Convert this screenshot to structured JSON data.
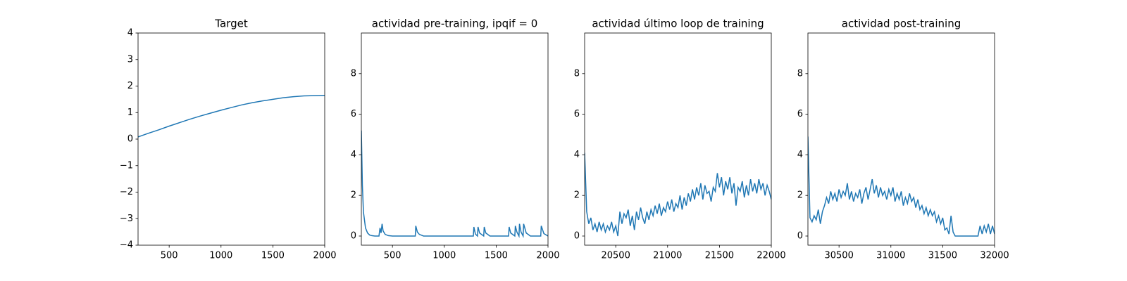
{
  "chart_data": [
    {
      "type": "line",
      "title": "Target",
      "color": "#1f77b4",
      "x": [
        200,
        300,
        400,
        500,
        600,
        700,
        800,
        900,
        1000,
        1100,
        1200,
        1300,
        1400,
        1500,
        1600,
        1700,
        1800,
        1900,
        2000
      ],
      "values": [
        0.08,
        0.22,
        0.35,
        0.49,
        0.62,
        0.75,
        0.87,
        0.98,
        1.09,
        1.19,
        1.29,
        1.37,
        1.44,
        1.5,
        1.56,
        1.6,
        1.63,
        1.64,
        1.65
      ],
      "xlim": [
        200,
        2000
      ],
      "ylim": [
        -4,
        4
      ],
      "xticks": [
        500,
        1000,
        1500,
        2000
      ],
      "yticks": [
        {
          "value": -4,
          "label": "−4"
        },
        {
          "value": -3,
          "label": "−3"
        },
        {
          "value": -2,
          "label": "−2"
        },
        {
          "value": -1,
          "label": "−1"
        },
        0,
        1,
        2,
        3,
        4
      ]
    },
    {
      "type": "line",
      "title": "actividad pre-training, ipqif = 0",
      "color": "#1f77b4",
      "x": [
        200,
        210,
        220,
        240,
        260,
        280,
        300,
        330,
        370,
        380,
        390,
        400,
        410,
        430,
        460,
        500,
        720,
        725,
        740,
        760,
        800,
        1280,
        1285,
        1300,
        1320,
        1325,
        1340,
        1380,
        1385,
        1400,
        1440,
        1620,
        1625,
        1640,
        1680,
        1685,
        1700,
        1720,
        1725,
        1740,
        1760,
        1765,
        1790,
        1830,
        1930,
        1935,
        1960,
        2000
      ],
      "values": [
        5.2,
        2.5,
        1.2,
        0.4,
        0.15,
        0.05,
        0.02,
        0.0,
        0.0,
        0.4,
        0.15,
        0.6,
        0.25,
        0.08,
        0.02,
        0.0,
        0.0,
        0.5,
        0.2,
        0.08,
        0.0,
        0.0,
        0.45,
        0.1,
        0.0,
        0.45,
        0.15,
        0.0,
        0.45,
        0.15,
        0.0,
        0.0,
        0.45,
        0.15,
        0.0,
        0.5,
        0.2,
        0.0,
        0.6,
        0.2,
        0.0,
        0.6,
        0.15,
        0.0,
        0.0,
        0.5,
        0.12,
        0.0
      ],
      "xlim": [
        200,
        2000
      ],
      "ylim": [
        -0.45,
        10
      ],
      "xticks": [
        500,
        1000,
        1500,
        2000
      ],
      "yticks": [
        0,
        2,
        4,
        6,
        8
      ]
    },
    {
      "type": "line",
      "title": "actividad último loop de training",
      "color": "#1f77b4",
      "x": [
        20200,
        20220,
        20240,
        20260,
        20280,
        20300,
        20320,
        20340,
        20360,
        20380,
        20400,
        20420,
        20440,
        20460,
        20480,
        20500,
        20520,
        20540,
        20560,
        20580,
        20600,
        20620,
        20640,
        20660,
        20680,
        20700,
        20720,
        20740,
        20760,
        20780,
        20800,
        20820,
        20840,
        20860,
        20880,
        20900,
        20920,
        20940,
        20960,
        20980,
        21000,
        21020,
        21040,
        21060,
        21080,
        21100,
        21120,
        21140,
        21160,
        21180,
        21200,
        21220,
        21240,
        21260,
        21280,
        21300,
        21320,
        21340,
        21360,
        21380,
        21400,
        21420,
        21440,
        21460,
        21480,
        21500,
        21520,
        21540,
        21560,
        21580,
        21600,
        21620,
        21640,
        21660,
        21680,
        21700,
        21720,
        21740,
        21760,
        21780,
        21800,
        21820,
        21840,
        21860,
        21880,
        21900,
        21920,
        21940,
        21960,
        21980,
        22000
      ],
      "values": [
        4.1,
        1.2,
        0.6,
        0.9,
        0.3,
        0.6,
        0.2,
        0.7,
        0.3,
        0.6,
        0.2,
        0.5,
        0.3,
        0.7,
        0.2,
        0.5,
        0.0,
        1.2,
        0.6,
        1.1,
        0.9,
        1.3,
        0.5,
        1.0,
        0.3,
        1.2,
        0.8,
        1.4,
        0.9,
        0.6,
        1.2,
        0.8,
        1.3,
        1.0,
        1.5,
        1.1,
        1.6,
        1.0,
        1.4,
        1.2,
        1.7,
        1.3,
        1.8,
        1.2,
        1.6,
        1.4,
        2.0,
        1.3,
        1.9,
        1.5,
        2.1,
        1.7,
        2.3,
        1.8,
        2.4,
        2.0,
        2.6,
        1.8,
        2.5,
        2.1,
        2.2,
        1.7,
        2.4,
        2.2,
        3.1,
        2.4,
        2.9,
        2.0,
        2.7,
        2.3,
        2.9,
        2.1,
        2.6,
        1.5,
        2.4,
        2.2,
        2.7,
        1.9,
        2.5,
        2.0,
        2.8,
        2.2,
        2.6,
        2.1,
        2.8,
        2.3,
        2.6,
        2.0,
        2.5,
        2.2,
        1.8
      ],
      "xlim": [
        20200,
        22000
      ],
      "ylim": [
        -0.45,
        10
      ],
      "xticks": [
        20500,
        21000,
        21500,
        22000
      ],
      "yticks": [
        0,
        2,
        4,
        6,
        8
      ]
    },
    {
      "type": "line",
      "title": "actividad post-training",
      "color": "#1f77b4",
      "x": [
        30200,
        30220,
        30240,
        30260,
        30280,
        30300,
        30320,
        30340,
        30360,
        30380,
        30400,
        30420,
        30440,
        30460,
        30480,
        30500,
        30520,
        30540,
        30560,
        30580,
        30600,
        30620,
        30640,
        30660,
        30680,
        30700,
        30720,
        30740,
        30760,
        30780,
        30800,
        30820,
        30840,
        30860,
        30880,
        30900,
        30920,
        30940,
        30960,
        30980,
        31000,
        31020,
        31040,
        31060,
        31080,
        31100,
        31120,
        31140,
        31160,
        31180,
        31200,
        31220,
        31240,
        31260,
        31280,
        31300,
        31320,
        31340,
        31360,
        31380,
        31400,
        31420,
        31440,
        31460,
        31480,
        31500,
        31520,
        31540,
        31560,
        31580,
        31600,
        31620,
        31640,
        31660,
        31680,
        31700,
        31720,
        31740,
        31760,
        31780,
        31800,
        31820,
        31840,
        31860,
        31880,
        31900,
        31920,
        31940,
        31960,
        31980,
        32000
      ],
      "values": [
        4.9,
        0.9,
        0.7,
        1.0,
        0.8,
        1.3,
        0.6,
        1.2,
        1.5,
        1.9,
        1.6,
        2.2,
        1.8,
        2.1,
        1.7,
        2.3,
        1.9,
        2.2,
        2.0,
        2.6,
        1.8,
        2.2,
        1.7,
        2.1,
        1.9,
        2.3,
        1.6,
        2.1,
        2.4,
        1.8,
        2.3,
        2.8,
        2.1,
        2.5,
        1.9,
        2.4,
        2.0,
        2.2,
        1.8,
        2.3,
        2.0,
        2.4,
        1.7,
        2.1,
        1.8,
        2.2,
        1.5,
        1.9,
        1.6,
        2.1,
        1.7,
        1.9,
        1.4,
        1.8,
        1.3,
        1.5,
        1.1,
        1.4,
        1.0,
        1.3,
        1.0,
        1.2,
        0.7,
        1.0,
        0.6,
        0.9,
        0.3,
        0.4,
        0.1,
        1.0,
        0.2,
        0.0,
        0.0,
        0.0,
        0.0,
        0.0,
        0.0,
        0.0,
        0.0,
        0.0,
        0.0,
        0.0,
        0.0,
        0.5,
        0.1,
        0.5,
        0.2,
        0.6,
        0.1,
        0.5,
        0.1
      ],
      "xlim": [
        30200,
        32000
      ],
      "ylim": [
        -0.45,
        10
      ],
      "xticks": [
        30500,
        31000,
        31500,
        32000
      ],
      "yticks": [
        0,
        2,
        4,
        6,
        8
      ]
    }
  ]
}
